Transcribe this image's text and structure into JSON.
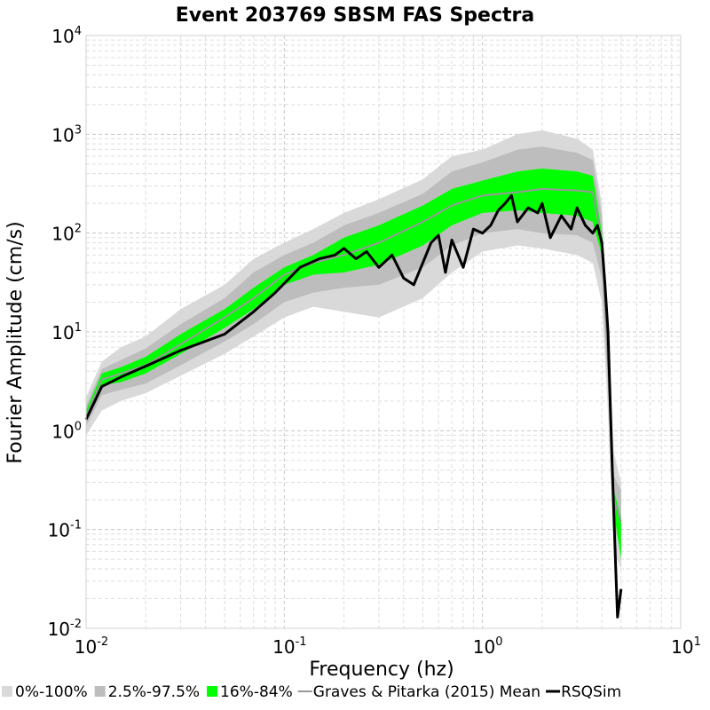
{
  "chart_data": {
    "type": "line",
    "title": "Event 203769 SBSM FAS Spectra",
    "xlabel": "Frequency (hz)",
    "ylabel": "Fourier Amplitude (cm/s)",
    "x_scale": "log",
    "y_scale": "log",
    "xlim": [
      0.01,
      10
    ],
    "ylim": [
      0.01,
      10000
    ],
    "x_ticks": [
      {
        "base": "10",
        "exp": "-2",
        "value": 0.01
      },
      {
        "base": "10",
        "exp": "-1",
        "value": 0.1
      },
      {
        "base": "10",
        "exp": "0",
        "value": 1
      },
      {
        "base": "10",
        "exp": "1",
        "value": 10
      }
    ],
    "y_ticks": [
      {
        "base": "10",
        "exp": "-2",
        "value": 0.01
      },
      {
        "base": "10",
        "exp": "-1",
        "value": 0.1
      },
      {
        "base": "10",
        "exp": "0",
        "value": 1
      },
      {
        "base": "10",
        "exp": "1",
        "value": 10
      },
      {
        "base": "10",
        "exp": "2",
        "value": 100
      },
      {
        "base": "10",
        "exp": "3",
        "value": 1000
      },
      {
        "base": "10",
        "exp": "4",
        "value": 10000
      }
    ],
    "grid": true,
    "legend_position": "bottom",
    "legend": [
      {
        "label": "0%-100%",
        "kind": "swatch",
        "color": "#d9d9d9"
      },
      {
        "label": "2.5%-97.5%",
        "kind": "swatch",
        "color": "#bdbdbd"
      },
      {
        "label": "16%-84%",
        "kind": "swatch",
        "color": "#00ff00"
      },
      {
        "label": "Graves & Pitarka (2015) Mean",
        "kind": "line",
        "color": "#999999"
      },
      {
        "label": "RSQSim",
        "kind": "line",
        "color": "#000000"
      }
    ],
    "bands": [
      {
        "name": "0%-100%",
        "color": "#d9d9d9",
        "x": [
          0.01,
          0.012,
          0.015,
          0.02,
          0.03,
          0.05,
          0.07,
          0.1,
          0.14,
          0.2,
          0.3,
          0.5,
          0.7,
          1.0,
          1.5,
          2.0,
          3.0,
          3.6,
          4.0,
          4.3,
          4.6,
          5.0
        ],
        "lower": [
          0.9,
          1.6,
          2.0,
          2.4,
          3.6,
          6.0,
          9.0,
          14,
          18,
          16,
          14,
          22,
          40,
          65,
          75,
          70,
          60,
          50,
          20,
          1.5,
          0.06,
          0.04
        ],
        "upper": [
          2.2,
          5.0,
          7.0,
          9.0,
          17,
          30,
          55,
          80,
          110,
          160,
          220,
          350,
          600,
          700,
          1000,
          1100,
          900,
          700,
          200,
          10,
          0.6,
          0.3
        ]
      },
      {
        "name": "2.5%-97.5%",
        "color": "#bdbdbd",
        "x": [
          0.01,
          0.012,
          0.015,
          0.02,
          0.03,
          0.05,
          0.07,
          0.1,
          0.14,
          0.2,
          0.3,
          0.5,
          0.7,
          1.0,
          1.5,
          2.0,
          3.0,
          3.6,
          4.0,
          4.3,
          4.6,
          5.0
        ],
        "lower": [
          1.1,
          2.3,
          2.6,
          3.0,
          4.6,
          8.0,
          12,
          20,
          25,
          28,
          30,
          45,
          75,
          100,
          110,
          100,
          95,
          80,
          35,
          2.5,
          0.1,
          0.07
        ],
        "upper": [
          1.8,
          4.2,
          5.2,
          6.8,
          12,
          22,
          40,
          60,
          80,
          120,
          160,
          250,
          420,
          520,
          700,
          750,
          650,
          550,
          150,
          7,
          0.35,
          0.25
        ]
      },
      {
        "name": "16%-84%",
        "color": "#00ff00",
        "x": [
          0.01,
          0.012,
          0.015,
          0.02,
          0.03,
          0.05,
          0.07,
          0.1,
          0.14,
          0.2,
          0.3,
          0.5,
          0.7,
          1.0,
          1.5,
          2.0,
          3.0,
          3.6,
          4.0,
          4.3,
          4.6,
          5.0
        ],
        "lower": [
          1.25,
          2.9,
          3.1,
          3.8,
          6.0,
          11,
          17,
          30,
          38,
          40,
          48,
          75,
          120,
          160,
          170,
          160,
          150,
          130,
          60,
          4.0,
          0.15,
          0.05
        ],
        "upper": [
          1.6,
          3.8,
          4.4,
          5.6,
          9.5,
          17,
          28,
          45,
          60,
          90,
          120,
          190,
          280,
          340,
          420,
          450,
          420,
          380,
          100,
          5.5,
          0.25,
          0.13
        ]
      }
    ],
    "series": [
      {
        "name": "Graves & Pitarka (2015) Mean",
        "color": "#999999",
        "x": [
          0.01,
          0.012,
          0.015,
          0.02,
          0.03,
          0.05,
          0.07,
          0.1,
          0.14,
          0.2,
          0.3,
          0.5,
          0.7,
          1.0,
          1.5,
          2.0,
          3.0,
          3.6,
          4.0,
          4.3,
          4.6,
          5.0
        ],
        "y": [
          1.4,
          3.3,
          3.8,
          4.6,
          7.5,
          14,
          22,
          38,
          50,
          60,
          80,
          130,
          190,
          240,
          260,
          280,
          270,
          260,
          80,
          5.0,
          0.2,
          0.12
        ]
      },
      {
        "name": "RSQSim",
        "color": "#000000",
        "x": [
          0.01,
          0.012,
          0.015,
          0.02,
          0.03,
          0.05,
          0.07,
          0.09,
          0.12,
          0.15,
          0.18,
          0.2,
          0.23,
          0.26,
          0.3,
          0.35,
          0.4,
          0.45,
          0.5,
          0.55,
          0.6,
          0.65,
          0.7,
          0.8,
          0.9,
          1.0,
          1.1,
          1.2,
          1.3,
          1.4,
          1.5,
          1.7,
          1.9,
          2.0,
          2.2,
          2.5,
          2.8,
          3.0,
          3.3,
          3.6,
          3.8,
          4.0,
          4.15,
          4.3,
          4.5,
          4.7,
          4.8,
          5.0
        ],
        "y": [
          1.3,
          2.8,
          3.5,
          4.5,
          6.5,
          9.5,
          16,
          25,
          45,
          55,
          60,
          70,
          55,
          65,
          45,
          60,
          35,
          30,
          50,
          80,
          95,
          40,
          85,
          45,
          110,
          100,
          120,
          170,
          200,
          240,
          130,
          180,
          160,
          200,
          90,
          150,
          110,
          180,
          120,
          100,
          120,
          80,
          30,
          10,
          0.5,
          0.04,
          0.013,
          0.025
        ]
      }
    ]
  }
}
